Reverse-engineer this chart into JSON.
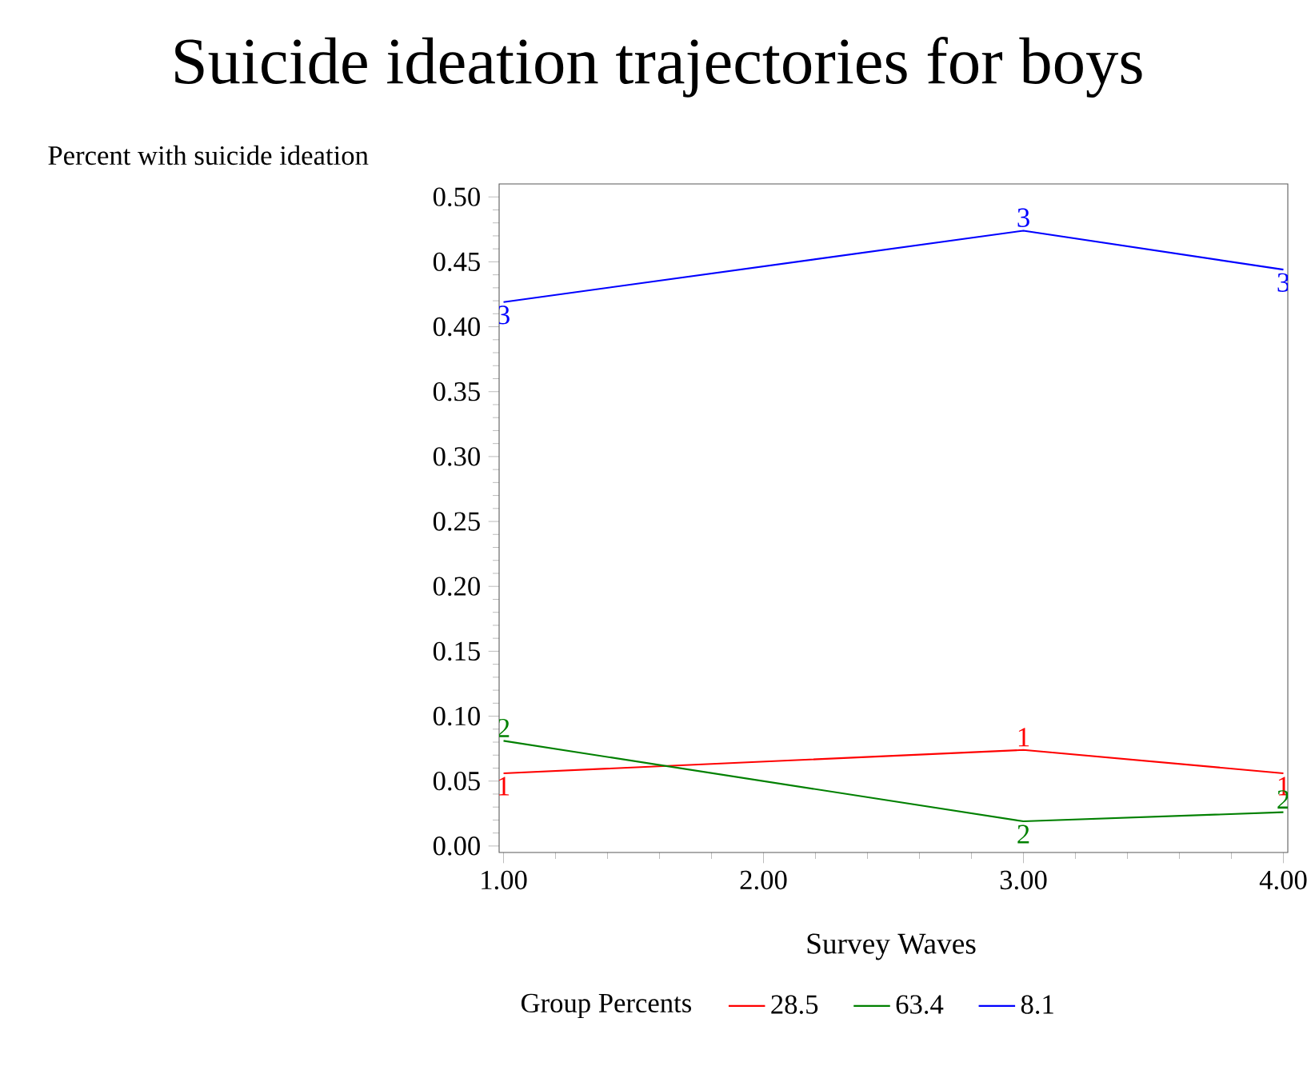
{
  "chart_data": {
    "type": "line",
    "title": "Suicide ideation trajectories for boys",
    "xlabel": "Survey Waves",
    "ylabel": "Percent with suicide ideation",
    "legend_title": "Group Percents",
    "x": [
      1,
      3,
      4
    ],
    "series": [
      {
        "name": "28.5",
        "color": "#ff0000",
        "values": [
          0.056,
          0.074,
          0.056
        ]
      },
      {
        "name": "63.4",
        "color": "#008000",
        "values": [
          0.081,
          0.019,
          0.026
        ]
      },
      {
        "name": "8.1",
        "color": "#0000ff",
        "values": [
          0.419,
          0.474,
          0.444
        ]
      }
    ],
    "xlim": [
      0.983,
      4.017
    ],
    "ylim": [
      -0.005,
      0.51
    ],
    "xticks": [
      {
        "value": 1,
        "label": "1.00"
      },
      {
        "value": 2,
        "label": "2.00"
      },
      {
        "value": 3,
        "label": "3.00"
      },
      {
        "value": 4,
        "label": "4.00"
      }
    ],
    "yticks": [
      {
        "value": 0,
        "label": "0.00"
      },
      {
        "value": 0.05,
        "label": "0.05"
      },
      {
        "value": 0.1,
        "label": "0.10"
      },
      {
        "value": 0.15,
        "label": "0.15"
      },
      {
        "value": 0.2,
        "label": "0.20"
      },
      {
        "value": 0.25,
        "label": "0.25"
      },
      {
        "value": 0.3,
        "label": "0.30"
      },
      {
        "value": 0.35,
        "label": "0.35"
      },
      {
        "value": 0.4,
        "label": "0.40"
      },
      {
        "value": 0.45,
        "label": "0.45"
      },
      {
        "value": 0.5,
        "label": "0.50"
      }
    ],
    "annotations": [
      {
        "text": "1",
        "x": 1,
        "y": 0.056
      },
      {
        "text": "1",
        "x": 3,
        "y": 0.074
      },
      {
        "text": "1",
        "x": 4,
        "y": 0.056
      },
      {
        "text": "2",
        "x": 1,
        "y": 0.081
      },
      {
        "text": "2",
        "x": 3,
        "y": 0.019
      },
      {
        "text": "2",
        "x": 4,
        "y": 0.026
      },
      {
        "text": "3",
        "x": 1,
        "y": 0.419
      },
      {
        "text": "3",
        "x": 3,
        "y": 0.474
      },
      {
        "text": "3",
        "x": 4,
        "y": 0.444
      }
    ],
    "legend": "bottom",
    "grid": false,
    "marker": "none",
    "line_style": "solid"
  }
}
